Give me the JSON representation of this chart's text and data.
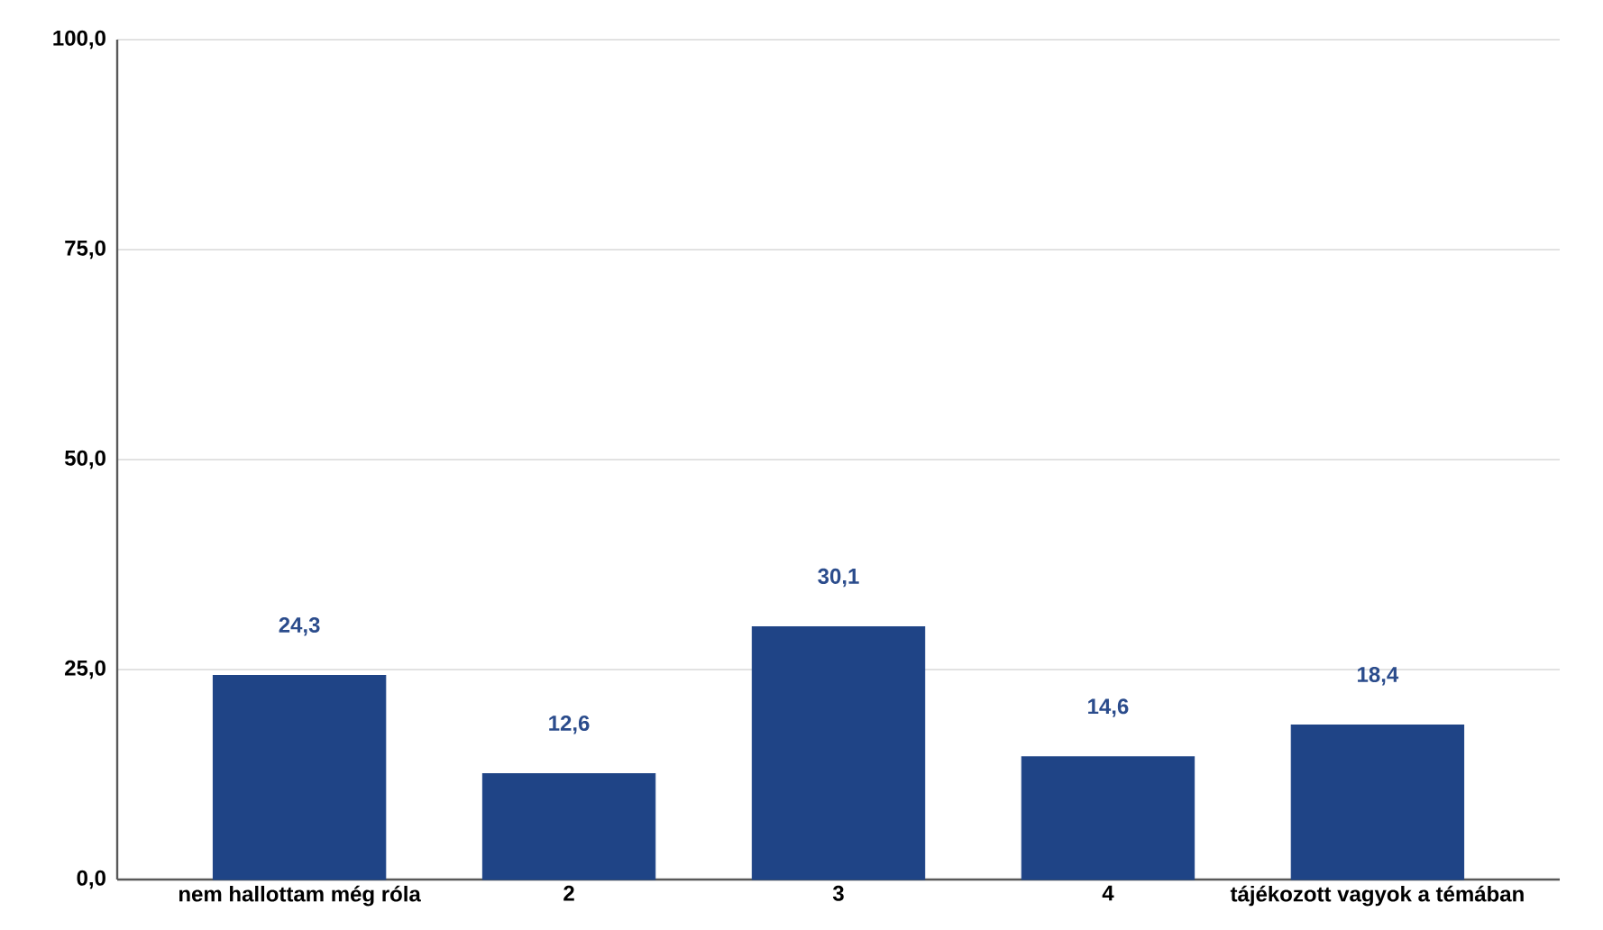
{
  "chart_data": {
    "type": "bar",
    "categories": [
      "nem hallottam még róla",
      "2",
      "3",
      "4",
      "tájékozott vagyok a témában"
    ],
    "values": [
      24.3,
      12.6,
      30.1,
      14.6,
      18.4
    ],
    "value_labels": [
      "24,3",
      "12,6",
      "30,1",
      "14,6",
      "18,4"
    ],
    "color": "#1f4486",
    "ylim": [
      0,
      100
    ],
    "yticks": [
      {
        "value": 0,
        "label": "0,0"
      },
      {
        "value": 25,
        "label": "25,0"
      },
      {
        "value": 50,
        "label": "50,0"
      },
      {
        "value": 75,
        "label": "75,0"
      },
      {
        "value": 100,
        "label": "100,0"
      }
    ],
    "grid": "y"
  }
}
